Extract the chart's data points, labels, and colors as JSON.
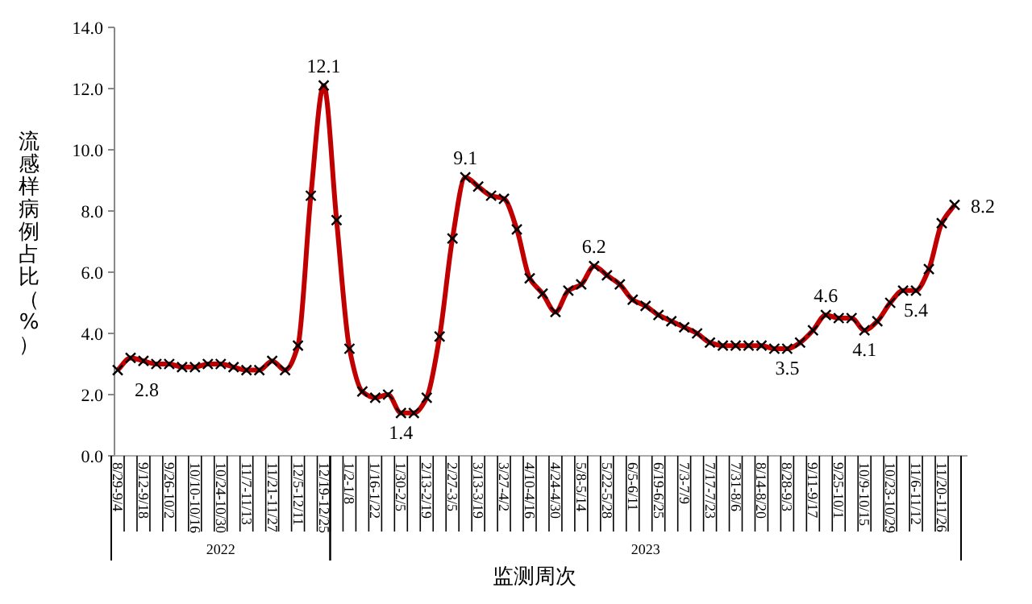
{
  "chart_data": {
    "type": "line",
    "ylabel": "流感样病例占比（%）",
    "xlabel": "监测周次",
    "categories": [
      "8/29-9/4",
      null,
      "9/12-9/18",
      null,
      "9/26-10/2",
      null,
      "10/10-10/16",
      null,
      "10/24-10/30",
      null,
      "11/7-11/13",
      null,
      "11/21-11/27",
      null,
      "12/5-12/11",
      null,
      "12/19-12/25",
      null,
      "1/2-1/8",
      null,
      "1/16-1/22",
      null,
      "1/30-2/5",
      null,
      "2/13-2/19",
      null,
      "2/27-3/5",
      null,
      "3/13-3/19",
      null,
      "3/27-4/2",
      null,
      "4/10-4/16",
      null,
      "4/24-4/30",
      null,
      "5/8-5/14",
      null,
      "5/22-5/28",
      null,
      "6/5-6/11",
      null,
      "6/19-6/25",
      null,
      "7/3-7/9",
      null,
      "7/17-7/23",
      null,
      "7/31-8/6",
      null,
      "8/14-8/20",
      null,
      "8/28-9/3",
      null,
      "9/11-9/17",
      null,
      "9/25-10/1",
      null,
      "10/9-10/15",
      null,
      "10/23-10/29",
      null,
      "11/6-11/12",
      null,
      "11/20-11/26",
      null
    ],
    "series": [
      {
        "color": "#c00000",
        "values": [
          2.8,
          3.2,
          3.1,
          3.0,
          3.0,
          2.9,
          2.9,
          3.0,
          3.0,
          2.9,
          2.8,
          2.8,
          3.1,
          2.8,
          3.6,
          8.5,
          12.1,
          7.7,
          3.5,
          2.1,
          1.9,
          2.0,
          1.4,
          1.4,
          1.9,
          3.9,
          7.1,
          9.1,
          8.8,
          8.5,
          8.4,
          7.4,
          5.8,
          5.3,
          4.7,
          5.4,
          5.6,
          6.2,
          5.9,
          5.6,
          5.1,
          4.9,
          4.6,
          4.4,
          4.2,
          4.0,
          3.7,
          3.6,
          3.6,
          3.6,
          3.6,
          3.5,
          3.5,
          3.7,
          4.1,
          4.6,
          4.5,
          4.5,
          4.1,
          4.4,
          5.0,
          5.4,
          5.4,
          6.1,
          7.6,
          8.2
        ],
        "value_labels": [
          "2.8",
          null,
          null,
          null,
          null,
          null,
          null,
          null,
          null,
          null,
          null,
          null,
          null,
          null,
          null,
          null,
          "12.1",
          null,
          null,
          null,
          null,
          null,
          "1.4",
          null,
          null,
          null,
          null,
          "9.1",
          null,
          null,
          null,
          null,
          null,
          null,
          null,
          null,
          null,
          "6.2",
          null,
          null,
          null,
          null,
          null,
          null,
          null,
          null,
          null,
          null,
          null,
          null,
          null,
          null,
          "3.5",
          null,
          null,
          "4.6",
          null,
          null,
          "4.1",
          null,
          null,
          null,
          "5.4",
          null,
          null,
          "8.2"
        ]
      }
    ],
    "annotations": [
      "2022",
      "2023"
    ],
    "ylim": [
      0,
      14
    ],
    "yticks": [
      {
        "value": 0,
        "label": "0.0"
      },
      {
        "value": 2,
        "label": "2.0"
      },
      {
        "value": 4,
        "label": "4.0"
      },
      {
        "value": 6,
        "label": "6.0"
      },
      {
        "value": 8,
        "label": "8.0"
      },
      {
        "value": 10,
        "label": "10.0"
      },
      {
        "value": 12,
        "label": "12.0"
      },
      {
        "value": 14,
        "label": "14.0"
      }
    ],
    "marker": "cross",
    "line_style": "solid",
    "grid": false
  }
}
